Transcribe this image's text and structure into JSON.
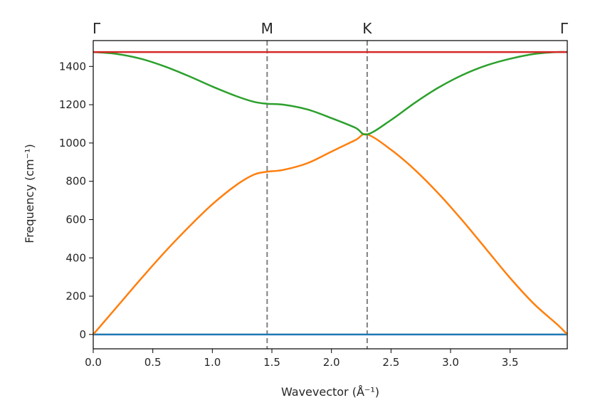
{
  "chart_data": {
    "type": "line",
    "title": "",
    "xlabel": "Wavevector (Å⁻¹)",
    "ylabel": "Frequency (cm⁻¹)",
    "xlim": [
      0.0,
      3.98
    ],
    "ylim": [
      -75,
      1535
    ],
    "xticks": [
      0.0,
      0.5,
      1.0,
      1.5,
      2.0,
      2.5,
      3.0,
      3.5
    ],
    "xtick_labels": [
      "0.0",
      "0.5",
      "1.0",
      "1.5",
      "2.0",
      "2.5",
      "3.0",
      "3.5"
    ],
    "yticks": [
      0,
      200,
      400,
      600,
      800,
      1000,
      1200,
      1400
    ],
    "ytick_labels": [
      "0",
      "200",
      "400",
      "600",
      "800",
      "1000",
      "1200",
      "1400"
    ],
    "grid": false,
    "high_symmetry_points": [
      {
        "label": "Γ",
        "x": 0.0,
        "line": false
      },
      {
        "label": "M",
        "x": 1.46,
        "line": true
      },
      {
        "label": "K",
        "x": 2.3,
        "line": true
      },
      {
        "label": "Γ",
        "x": 3.98,
        "line": false
      }
    ],
    "series": [
      {
        "color": "#1f77b4",
        "x": [
          0.0,
          3.98
        ],
        "y": [
          0,
          0
        ]
      },
      {
        "color": "#ff7f0e",
        "x": [
          0.0,
          0.2,
          0.4,
          0.6,
          0.8,
          1.0,
          1.2,
          1.35,
          1.46,
          1.6,
          1.8,
          2.0,
          2.2,
          2.3,
          2.5,
          2.7,
          2.9,
          3.1,
          3.3,
          3.5,
          3.7,
          3.9,
          3.98
        ],
        "y": [
          0,
          145,
          290,
          430,
          560,
          680,
          780,
          835,
          850,
          860,
          895,
          955,
          1015,
          1045,
          965,
          860,
          735,
          595,
          445,
          295,
          160,
          50,
          0
        ]
      },
      {
        "color": "#2ca02c",
        "x": [
          0.0,
          0.2,
          0.4,
          0.6,
          0.8,
          1.0,
          1.2,
          1.35,
          1.46,
          1.6,
          1.8,
          2.0,
          2.2,
          2.3,
          2.5,
          2.7,
          2.9,
          3.1,
          3.3,
          3.5,
          3.7,
          3.9,
          3.98
        ],
        "y": [
          1475,
          1465,
          1440,
          1400,
          1350,
          1295,
          1245,
          1215,
          1205,
          1200,
          1175,
          1130,
          1080,
          1045,
          1120,
          1210,
          1290,
          1355,
          1405,
          1440,
          1465,
          1475,
          1475
        ]
      },
      {
        "color": "#d62728",
        "x": [
          0.0,
          3.98
        ],
        "y": [
          1475,
          1475
        ]
      }
    ]
  }
}
